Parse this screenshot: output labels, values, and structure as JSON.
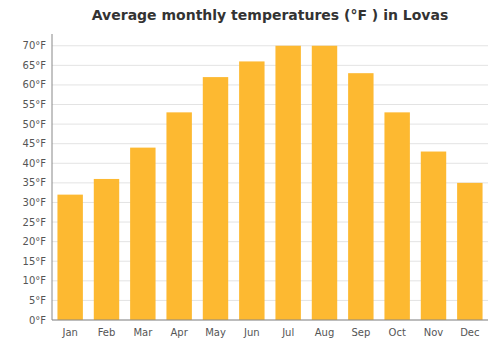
{
  "chart_data": {
    "type": "bar",
    "title": "Average monthly temperatures (°F ) in Lovas",
    "categories": [
      "Jan",
      "Feb",
      "Mar",
      "Apr",
      "May",
      "Jun",
      "Jul",
      "Aug",
      "Sep",
      "Oct",
      "Nov",
      "Dec"
    ],
    "values": [
      32,
      36,
      44,
      53,
      62,
      66,
      70,
      70,
      63,
      53,
      43,
      35
    ],
    "color": "#FDB931",
    "ylim": [
      0,
      73
    ],
    "yticks": [
      {
        "value": 0,
        "label": "0°F"
      },
      {
        "value": 5,
        "label": "5°F"
      },
      {
        "value": 10,
        "label": "10°F"
      },
      {
        "value": 15,
        "label": "15°F"
      },
      {
        "value": 20,
        "label": "20°F"
      },
      {
        "value": 25,
        "label": "25°F"
      },
      {
        "value": 30,
        "label": "30°F"
      },
      {
        "value": 35,
        "label": "35°F"
      },
      {
        "value": 40,
        "label": "40°F"
      },
      {
        "value": 45,
        "label": "45°F"
      },
      {
        "value": 50,
        "label": "50°F"
      },
      {
        "value": 55,
        "label": "55°F"
      },
      {
        "value": 60,
        "label": "60°F"
      },
      {
        "value": 65,
        "label": "65°F"
      },
      {
        "value": 70,
        "label": "70°F"
      }
    ],
    "grid": true
  }
}
